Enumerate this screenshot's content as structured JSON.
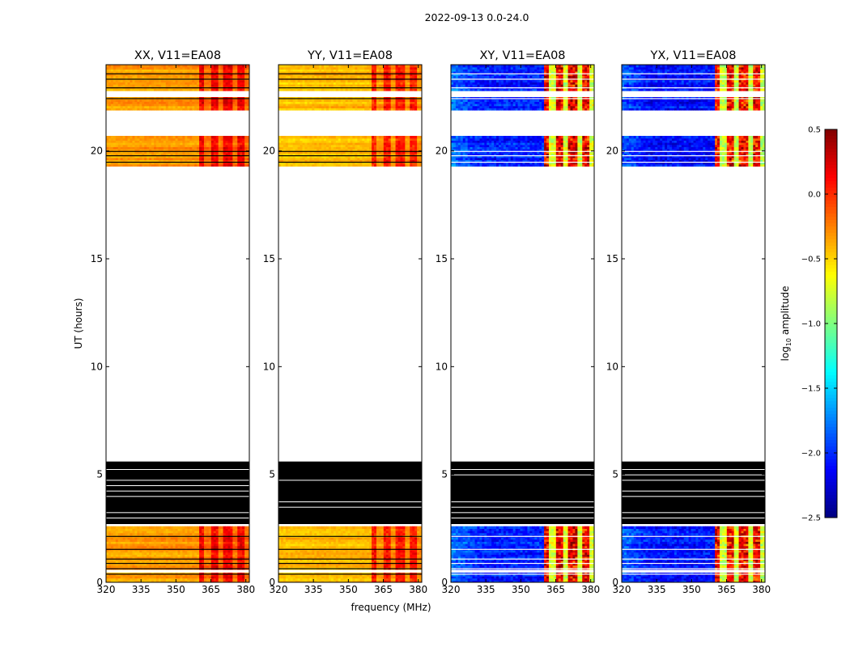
{
  "suptitle": "2022-09-13 0.0-24.0",
  "chart_data": {
    "type": "heatmap",
    "panels": [
      {
        "title": "XX, V11=EA08",
        "pol": "XX",
        "base": -0.35
      },
      {
        "title": "YY, V11=EA08",
        "pol": "YY",
        "base": -0.45
      },
      {
        "title": "XY, V11=EA08",
        "pol": "XY",
        "base": -2.05
      },
      {
        "title": "YX, V11=EA08",
        "pol": "YX",
        "base": -2.1
      }
    ],
    "xlabel": "frequency (MHz)",
    "ylabel": "UT (hours)",
    "xlim": [
      320,
      381.5
    ],
    "ylim": [
      0,
      24
    ],
    "xticks": [
      320,
      335,
      350,
      365,
      380
    ],
    "yticks": [
      0,
      5,
      10,
      15,
      20
    ],
    "colorbar": {
      "label_main": "log",
      "label_sub": "10",
      "label_rest": " amplitude",
      "vmin": -2.5,
      "vmax": 0.5,
      "ticks": [
        0.5,
        0.0,
        -0.5,
        -1.0,
        -1.5,
        -2.0,
        -2.5
      ],
      "tick_labels": [
        "0.5",
        "0.0",
        "−0.5",
        "−1.0",
        "−1.5",
        "−2.0",
        "−2.5"
      ],
      "colormap": "jet"
    },
    "data_blocks_ut": [
      [
        0,
        0.45
      ],
      [
        0.6,
        2.6
      ],
      [
        19.3,
        20.7
      ],
      [
        21.9,
        22.5
      ],
      [
        22.8,
        24.0
      ]
    ],
    "flagged_black_ut": [
      2.7,
      5.6
    ],
    "gap_lines_ut": [
      0.4,
      0.65,
      0.9,
      1.1,
      1.55,
      2.15,
      19.5,
      19.8,
      20.0,
      22.45,
      22.95,
      23.35,
      23.6
    ],
    "rfi_channels_mhz": [
      363.5,
      369.5,
      375.5,
      380.5
    ]
  }
}
